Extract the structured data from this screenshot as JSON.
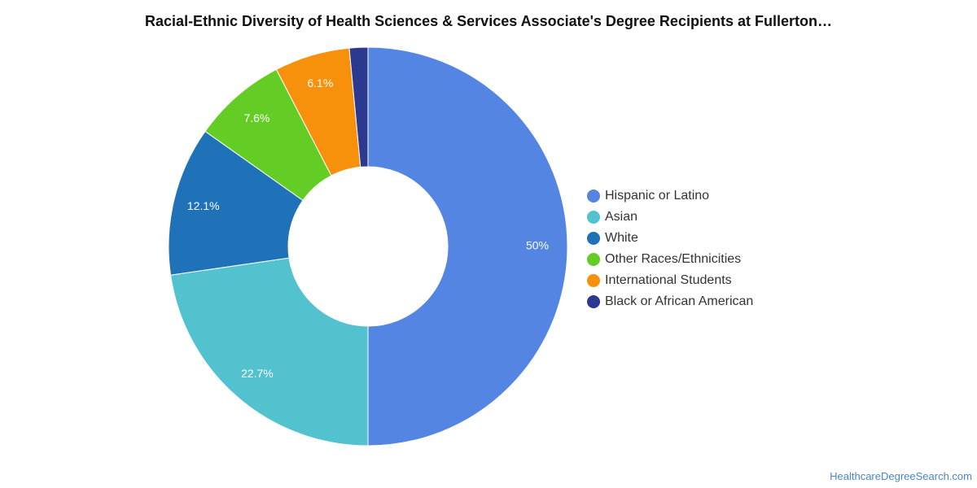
{
  "chart_data": {
    "type": "pie",
    "variant": "donut",
    "title": "Racial-Ethnic Diversity of Health Sciences & Services Associate's Degree Recipients at Fullerton…",
    "slices": [
      {
        "label": "Hispanic or Latino",
        "value": 50,
        "display": "50%",
        "color": "#5485e2"
      },
      {
        "label": "Asian",
        "value": 22.7,
        "display": "22.7%",
        "color": "#52c2cf"
      },
      {
        "label": "White",
        "value": 12.1,
        "display": "12.1%",
        "color": "#1f72b8"
      },
      {
        "label": "Other Races/Ethnicities",
        "value": 7.6,
        "display": "7.6%",
        "color": "#63cd25"
      },
      {
        "label": "International Students",
        "value": 6.1,
        "display": "6.1%",
        "color": "#f7900a"
      },
      {
        "label": "Black or African American",
        "value": 1.5,
        "display": "",
        "color": "#2b3990"
      }
    ],
    "legend_position": "right"
  },
  "source": {
    "text": "HealthcareDegreeSearch.com"
  }
}
